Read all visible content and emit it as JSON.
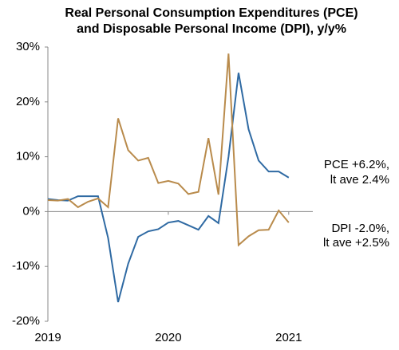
{
  "chart_data": {
    "type": "line",
    "title": [
      "Real Personal Consumption Expenditures (PCE)",
      "and Disposable Personal Income (DPI), y/y%"
    ],
    "x": [
      2019,
      2019.0833,
      2019.1667,
      2019.25,
      2019.3333,
      2019.4167,
      2019.5,
      2019.5833,
      2019.6667,
      2019.75,
      2019.8333,
      2019.9167,
      2020,
      2020.0833,
      2020.1667,
      2020.25,
      2020.3333,
      2020.4167,
      2020.5,
      2020.5833,
      2020.6667,
      2020.75,
      2020.8333,
      2020.9167,
      2021
    ],
    "xlim": [
      2019,
      2021.2
    ],
    "xticks": [
      2019,
      2020,
      2021
    ],
    "ylim": [
      -20,
      30
    ],
    "yticks": [
      {
        "value": -20,
        "label": "-20%"
      },
      {
        "value": -10,
        "label": "-10%"
      },
      {
        "value": 0,
        "label": "0%"
      },
      {
        "value": 10,
        "label": "10%"
      },
      {
        "value": 20,
        "label": "20%"
      },
      {
        "value": 30,
        "label": "30%"
      }
    ],
    "series": [
      {
        "name": "PCE",
        "color": "#2f6aa3",
        "values": [
          2.3,
          2.1,
          2.0,
          2.8,
          2.8,
          2.8,
          -4.8,
          -16.5,
          -9.5,
          -4.6,
          -3.6,
          -3.2,
          -2.0,
          -1.7,
          -2.5,
          -3.3,
          -0.8,
          -2.1,
          10,
          25.3,
          15,
          9.3,
          7.3,
          7.3,
          6.2
        ],
        "annotation": [
          "PCE +6.2%,",
          "lt ave 2.4%"
        ]
      },
      {
        "name": "DPI",
        "color": "#b98b4c",
        "values": [
          2.1,
          2.0,
          2.3,
          0.8,
          1.8,
          2.4,
          0.8,
          17,
          11.2,
          9.3,
          9.8,
          5.2,
          5.6,
          5.1,
          3.2,
          3.6,
          13.4,
          3.1,
          28.8,
          -6.1,
          -4.5,
          -3.4,
          -3.3,
          0.2,
          -2.0
        ],
        "annotation": [
          "DPI -2.0%,",
          "lt ave +2.5%"
        ]
      }
    ]
  }
}
